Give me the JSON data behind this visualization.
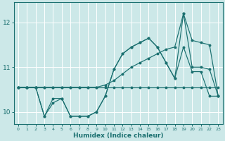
{
  "xlabel": "Humidex (Indice chaleur)",
  "bg_color": "#cce8e8",
  "line_color": "#1b7070",
  "grid_color": "#ffffff",
  "xlim": [
    0,
    23
  ],
  "ylim": [
    9.72,
    12.45
  ],
  "yticks": [
    10,
    11,
    12
  ],
  "xticks": [
    0,
    1,
    2,
    3,
    4,
    5,
    6,
    7,
    8,
    9,
    10,
    11,
    12,
    13,
    14,
    15,
    16,
    17,
    18,
    19,
    20,
    21,
    22,
    23
  ],
  "series": [
    {
      "y": [
        10.55,
        10.55,
        10.55,
        10.55,
        10.55,
        10.55,
        10.55,
        10.55,
        10.55,
        10.55,
        10.55,
        10.55,
        10.55,
        10.55,
        10.55,
        10.55,
        10.55,
        10.55,
        10.55,
        10.55,
        10.55,
        10.55,
        10.55,
        10.55
      ]
    },
    {
      "y": [
        10.55,
        10.55,
        10.55,
        10.55,
        10.55,
        10.55,
        10.55,
        10.55,
        10.55,
        10.55,
        10.6,
        10.7,
        10.85,
        11.0,
        11.1,
        11.2,
        11.3,
        11.4,
        11.45,
        12.2,
        11.6,
        11.55,
        11.5,
        10.35
      ]
    },
    {
      "y": [
        10.55,
        10.55,
        10.55,
        9.9,
        10.2,
        10.3,
        9.9,
        9.9,
        9.9,
        10.0,
        10.35,
        10.95,
        11.3,
        11.45,
        11.55,
        11.65,
        11.45,
        11.1,
        10.75,
        11.45,
        10.9,
        10.9,
        10.35,
        10.35
      ]
    },
    {
      "y": [
        10.55,
        10.55,
        10.55,
        9.9,
        10.3,
        10.3,
        9.9,
        9.9,
        9.9,
        10.0,
        10.35,
        10.95,
        11.3,
        11.45,
        11.55,
        11.65,
        11.45,
        11.1,
        10.75,
        12.2,
        11.0,
        11.0,
        10.95,
        10.35
      ]
    }
  ]
}
